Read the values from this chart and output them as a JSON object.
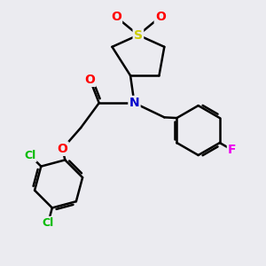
{
  "bg_color": "#ebebf0",
  "bond_color": "#000000",
  "atom_colors": {
    "S": "#cccc00",
    "O": "#ff0000",
    "N": "#0000cc",
    "Cl": "#00bb00",
    "F": "#ee00ee",
    "C": "#000000"
  },
  "bond_width": 1.8,
  "figsize": [
    3.0,
    3.0
  ],
  "dpi": 100,
  "xlim": [
    0,
    10
  ],
  "ylim": [
    0,
    10
  ]
}
